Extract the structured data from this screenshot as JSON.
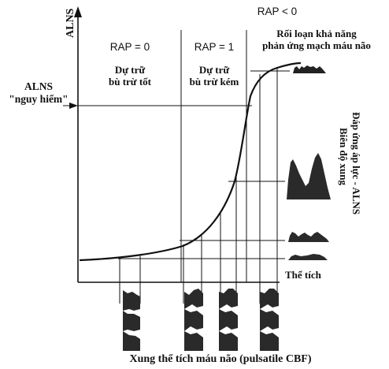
{
  "axes": {
    "y_label": "ALNS",
    "x_label": "Thể tích",
    "bottom_caption": "Xung thể tích máu não (pulsatile CBF)",
    "right_label_line1": "Đáp ứng áp lực - ALNS",
    "right_label_line2": "Biên độ xung"
  },
  "danger_label": {
    "line1": "ALNS",
    "line2": "\"nguy hiểm\""
  },
  "zones": [
    {
      "rap": "RAP = 0",
      "line1": "Dự trữ",
      "line2": "bù trừ tốt"
    },
    {
      "rap": "RAP = 1",
      "line1": "Dự trữ",
      "line2": "bù trừ kém"
    },
    {
      "rap": "RAP < 0",
      "line1": "Rối loạn khả năng",
      "line2": "phản ứng mạch máu não"
    }
  ],
  "colors": {
    "ink": "#111111",
    "fill": "#2a2a2a",
    "background": "#ffffff"
  }
}
